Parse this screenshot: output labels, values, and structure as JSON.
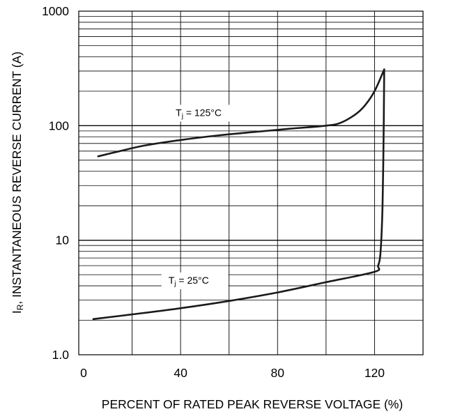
{
  "chart_data": {
    "type": "line",
    "title": "",
    "xlabel": "PERCENT OF RATED PEAK REVERSE VOLTAGE (%)",
    "ylabel_main": "I",
    "ylabel_sub": "R",
    "ylabel_rest": ", INSTANTANEOUS REVERSE CURRENT (A)",
    "xlim": [
      -2,
      140
    ],
    "ylim": [
      1,
      1000
    ],
    "y_scale": "log",
    "grid": true,
    "x_ticks": [
      0,
      40,
      80,
      120
    ],
    "x_tick_labels": [
      "0",
      "40",
      "80",
      "120"
    ],
    "y_ticks": [
      1,
      10,
      100,
      1000
    ],
    "y_tick_labels": [
      "1.0",
      "10",
      "100",
      "1000"
    ],
    "series": [
      {
        "label_main": "T",
        "label_sub": "j",
        "label_rest": " = 125°C",
        "label_at": [
          38,
          125
        ],
        "points": [
          [
            6,
            54
          ],
          [
            15,
            60
          ],
          [
            25,
            67
          ],
          [
            40,
            75
          ],
          [
            55,
            82
          ],
          [
            70,
            88
          ],
          [
            85,
            94
          ],
          [
            100,
            100
          ],
          [
            106,
            106
          ],
          [
            112,
            125
          ],
          [
            116,
            150
          ],
          [
            120,
            200
          ],
          [
            124,
            310
          ]
        ]
      },
      {
        "label_main": "T",
        "label_sub": "j",
        "label_rest": " = 25°C",
        "label_at": [
          35,
          4.3
        ],
        "points": [
          [
            4,
            2.05
          ],
          [
            20,
            2.25
          ],
          [
            40,
            2.55
          ],
          [
            60,
            2.95
          ],
          [
            80,
            3.5
          ],
          [
            100,
            4.3
          ],
          [
            120,
            5.3
          ],
          [
            121.5,
            6
          ],
          [
            122.5,
            8
          ],
          [
            123.3,
            20
          ],
          [
            123.8,
            100
          ],
          [
            124,
            310
          ]
        ]
      }
    ],
    "colors": {
      "line": "#1a1a1a",
      "grid": "#000000",
      "frame": "#000000"
    }
  }
}
